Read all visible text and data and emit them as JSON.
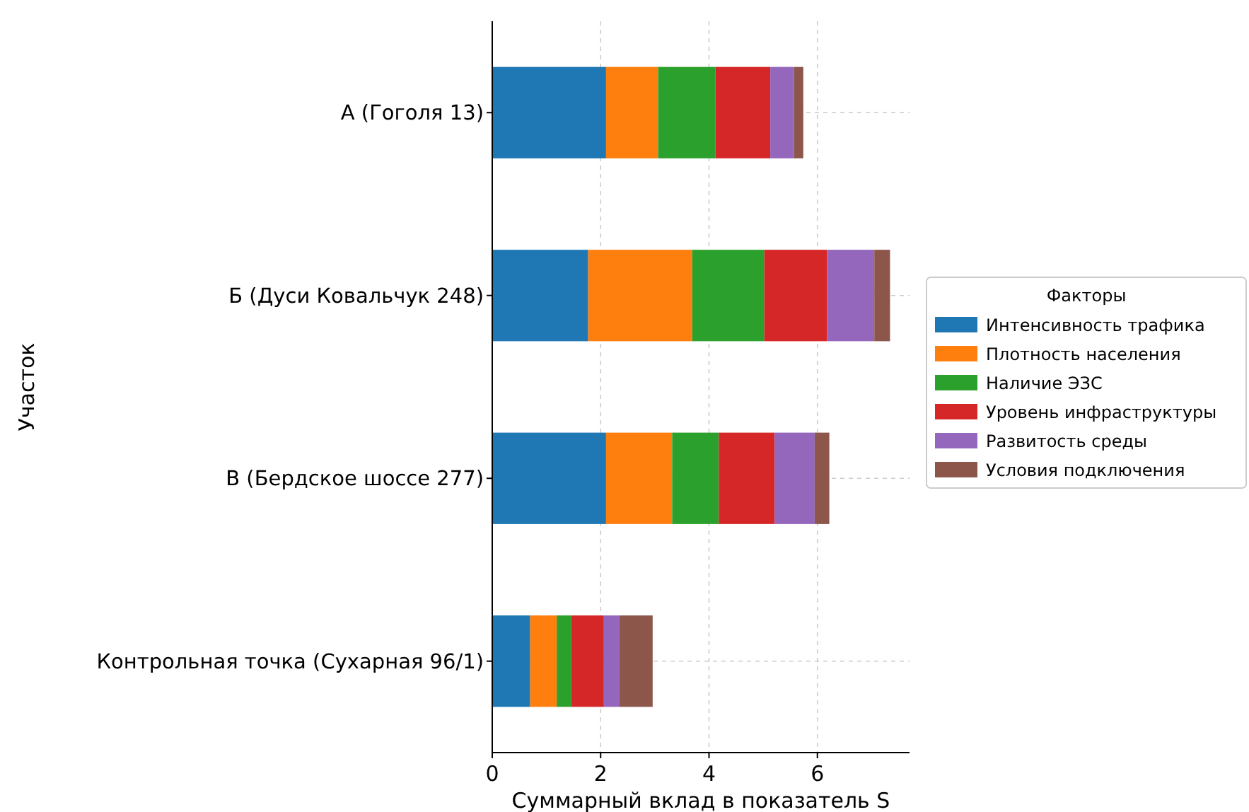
{
  "chart_data": {
    "type": "bar",
    "orientation": "horizontal",
    "stacked": true,
    "xlabel": "Суммарный вклад в показатель S",
    "ylabel": "Участок",
    "legend_title": "Факторы",
    "legend": "right",
    "grid": true,
    "categories": [
      "А (Гоголя 13)",
      "Б (Дуси Ковальчук 248)",
      "В (Бердское шоссе 277)",
      "Контрольная точка (Сухарная 96/1)"
    ],
    "xlim": [
      0,
      7.7
    ],
    "xticks": [
      0,
      2,
      4,
      6
    ],
    "series": [
      {
        "name": "Интенсивность трафика",
        "color": "#1f77b4",
        "values": [
          2.1,
          1.77,
          2.1,
          0.7
        ]
      },
      {
        "name": "Плотность населения",
        "color": "#ff7f0e",
        "values": [
          0.96,
          1.92,
          1.22,
          0.49
        ]
      },
      {
        "name": "Наличие ЭЗС",
        "color": "#2ca02c",
        "values": [
          1.06,
          1.33,
          0.86,
          0.27
        ]
      },
      {
        "name": "Уровень инфраструктуры",
        "color": "#d62728",
        "values": [
          1.01,
          1.16,
          1.03,
          0.6
        ]
      },
      {
        "name": "Развитость среды",
        "color": "#9467bd",
        "values": [
          0.44,
          0.87,
          0.74,
          0.28
        ]
      },
      {
        "name": "Условия подключения",
        "color": "#8c564b",
        "values": [
          0.17,
          0.29,
          0.27,
          0.62
        ]
      }
    ]
  }
}
